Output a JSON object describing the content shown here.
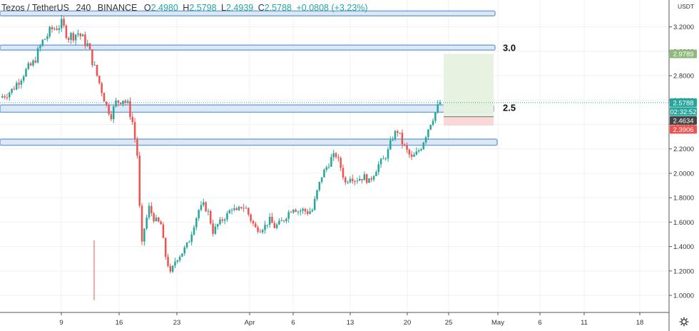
{
  "header": {
    "symbol": "Tezos / TetherUS",
    "interval": "240",
    "exchange": "BINANCE",
    "o_label": "O",
    "o": "2.4980",
    "h_label": "H",
    "h": "2.5798",
    "l_label": "L",
    "l": "2.4939",
    "c_label": "C",
    "c": "2.5788",
    "change": "+0.0808 (+3.23%)"
  },
  "currency": "USDT",
  "colors": {
    "up": "#26a69a",
    "down": "#ef5350",
    "zone_fill": "#dce8f6",
    "zone_border": "#7aa6d6",
    "profit": "#e6f1df",
    "loss": "#f8d6d6",
    "price_badge": "#26a69a",
    "target_badge": "#8db97a",
    "stop_badge": "#ef5350",
    "entry_badge": "#444444"
  },
  "chart_data": {
    "type": "candlestick",
    "y_axis_ticks": [
      "3.2000",
      "3.0000",
      "2.8000",
      "2.6000",
      "2.4000",
      "2.2000",
      "2.0000",
      "1.8000",
      "1.6000",
      "1.4000",
      "1.2000",
      "1.0000"
    ],
    "x_axis_ticks": [
      "9",
      "16",
      "23",
      "Apr",
      "6",
      "13",
      "20",
      "25",
      "May",
      "6",
      "11",
      "18",
      "25"
    ],
    "ylim": [
      0.86,
      3.42
    ],
    "grid": true,
    "annotations": [
      {
        "text": "3.0",
        "level": 3.02
      },
      {
        "text": "2.5",
        "level": 2.53
      }
    ],
    "zones": [
      {
        "low": 3.29,
        "high": 3.33
      },
      {
        "low": 3.01,
        "high": 3.05
      },
      {
        "low": 2.5,
        "high": 2.56
      },
      {
        "low": 2.23,
        "high": 2.28
      }
    ],
    "position": {
      "target": 2.9789,
      "entry": 2.4634,
      "stop": 2.3906
    },
    "price_labels": [
      {
        "text": "2.9789",
        "value": 2.9789,
        "kind": "target"
      },
      {
        "text": "2.5788",
        "value": 2.5788,
        "kind": "last"
      },
      {
        "text": "02:32:52",
        "value": 2.515,
        "kind": "countdown"
      },
      {
        "text": "2.4634",
        "value": 2.4634,
        "kind": "entry"
      },
      {
        "text": "2.3906",
        "value": 2.3906,
        "kind": "stop"
      }
    ],
    "last_price": 2.5788,
    "close_path": [
      [
        0,
        2.62
      ],
      [
        5,
        2.68
      ],
      [
        10,
        2.82
      ],
      [
        14,
        2.9
      ],
      [
        18,
        3.08
      ],
      [
        22,
        3.18
      ],
      [
        26,
        3.22
      ],
      [
        29,
        3.12
      ],
      [
        33,
        3.15
      ],
      [
        37,
        3.05
      ],
      [
        40,
        2.86
      ],
      [
        43,
        2.68
      ],
      [
        45,
        2.55
      ],
      [
        47,
        2.48
      ],
      [
        49,
        2.58
      ],
      [
        52,
        2.61
      ],
      [
        54,
        2.56
      ],
      [
        56,
        2.42
      ],
      [
        58,
        2.15
      ],
      [
        59,
        1.72
      ],
      [
        60,
        1.42
      ],
      [
        61,
        1.55
      ],
      [
        63,
        1.72
      ],
      [
        65,
        1.63
      ],
      [
        68,
        1.58
      ],
      [
        70,
        1.32
      ],
      [
        72,
        1.18
      ],
      [
        74,
        1.28
      ],
      [
        77,
        1.35
      ],
      [
        80,
        1.45
      ],
      [
        82,
        1.58
      ],
      [
        84,
        1.7
      ],
      [
        86,
        1.74
      ],
      [
        88,
        1.68
      ],
      [
        90,
        1.52
      ],
      [
        92,
        1.58
      ],
      [
        94,
        1.62
      ],
      [
        96,
        1.66
      ],
      [
        98,
        1.72
      ],
      [
        100,
        1.68
      ],
      [
        102,
        1.73
      ],
      [
        104,
        1.71
      ],
      [
        106,
        1.62
      ],
      [
        108,
        1.55
      ],
      [
        110,
        1.54
      ],
      [
        112,
        1.57
      ],
      [
        114,
        1.62
      ],
      [
        116,
        1.56
      ],
      [
        118,
        1.59
      ],
      [
        120,
        1.62
      ],
      [
        122,
        1.68
      ],
      [
        124,
        1.72
      ],
      [
        126,
        1.69
      ],
      [
        128,
        1.7
      ],
      [
        130,
        1.68
      ],
      [
        132,
        1.7
      ],
      [
        134,
        1.85
      ],
      [
        136,
        1.98
      ],
      [
        138,
        2.05
      ],
      [
        140,
        2.12
      ],
      [
        142,
        2.15
      ],
      [
        144,
        2.05
      ],
      [
        146,
        1.92
      ],
      [
        148,
        1.98
      ],
      [
        150,
        1.95
      ],
      [
        152,
        1.96
      ],
      [
        154,
        1.97
      ],
      [
        156,
        1.93
      ],
      [
        158,
        2.0
      ],
      [
        160,
        2.07
      ],
      [
        162,
        2.11
      ],
      [
        164,
        2.18
      ],
      [
        166,
        2.3
      ],
      [
        168,
        2.35
      ],
      [
        170,
        2.25
      ],
      [
        172,
        2.18
      ],
      [
        174,
        2.12
      ],
      [
        176,
        2.16
      ],
      [
        178,
        2.22
      ],
      [
        180,
        2.32
      ],
      [
        182,
        2.42
      ],
      [
        184,
        2.5
      ],
      [
        186,
        2.58
      ]
    ]
  }
}
